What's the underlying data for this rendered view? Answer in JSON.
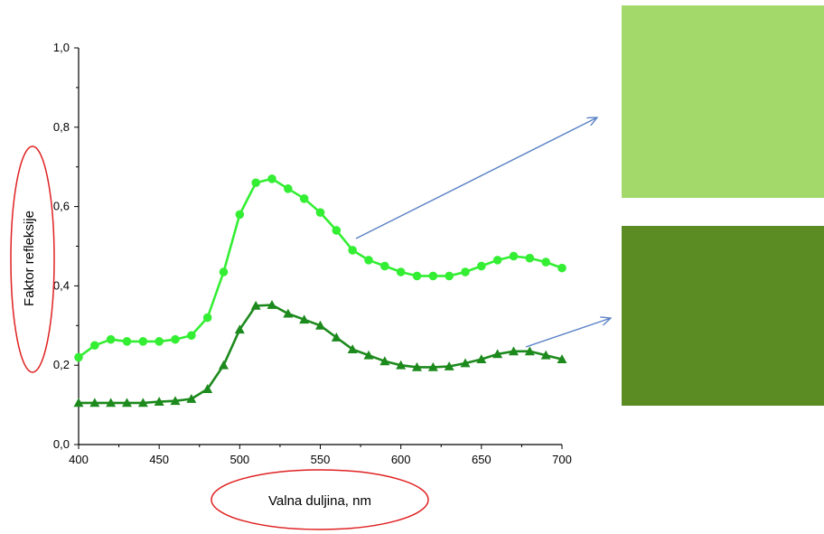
{
  "chart_data": {
    "type": "line",
    "xlabel": "Valna duljina, nm",
    "ylabel": "Faktor refleksije",
    "xlim": [
      400,
      700
    ],
    "ylim": [
      0.0,
      1.0
    ],
    "xticks": [
      "400",
      "450",
      "500",
      "550",
      "600",
      "650",
      "700"
    ],
    "yticks": [
      "0,0",
      "0,2",
      "0,4",
      "0,6",
      "0,8",
      "1,0"
    ],
    "grid": false,
    "x": [
      400,
      410,
      420,
      430,
      440,
      450,
      460,
      470,
      480,
      490,
      500,
      510,
      520,
      530,
      540,
      550,
      560,
      570,
      580,
      590,
      600,
      610,
      620,
      630,
      640,
      650,
      660,
      670,
      680,
      690,
      700
    ],
    "series": [
      {
        "marker": "circle",
        "color": "#33ee33",
        "values": [
          0.22,
          0.25,
          0.265,
          0.26,
          0.26,
          0.26,
          0.265,
          0.275,
          0.32,
          0.435,
          0.58,
          0.66,
          0.67,
          0.645,
          0.62,
          0.585,
          0.54,
          0.49,
          0.465,
          0.45,
          0.435,
          0.425,
          0.425,
          0.425,
          0.435,
          0.45,
          0.465,
          0.475,
          0.47,
          0.46,
          0.445
        ]
      },
      {
        "marker": "triangle",
        "color": "#1d8a1d",
        "values": [
          0.105,
          0.105,
          0.105,
          0.105,
          0.105,
          0.108,
          0.11,
          0.115,
          0.14,
          0.2,
          0.29,
          0.35,
          0.352,
          0.33,
          0.315,
          0.3,
          0.27,
          0.24,
          0.225,
          0.21,
          0.2,
          0.195,
          0.195,
          0.197,
          0.205,
          0.215,
          0.228,
          0.235,
          0.235,
          0.225,
          0.215
        ]
      }
    ]
  },
  "colors": {
    "light_swatch": "#a3d96b",
    "dark_swatch": "#5b8c23",
    "arrow": "#5b82c6",
    "highlight_ellipse": "#e02020",
    "axis": "#000000"
  }
}
